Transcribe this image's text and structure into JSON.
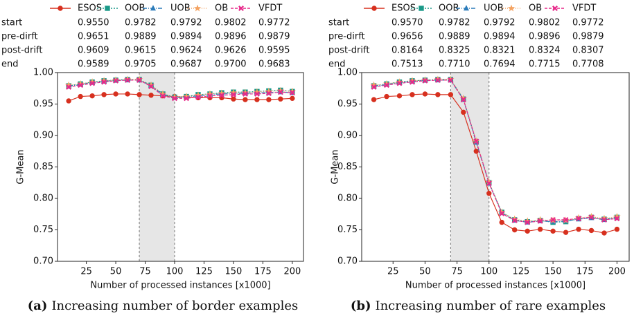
{
  "chart_data": [
    {
      "type": "line",
      "caption_label": "(a)",
      "caption": "Increasing number of border examples",
      "xlabel": "Number of processed instances [x1000]",
      "ylabel": "G-Mean",
      "xlim": [
        0.5,
        209.5
      ],
      "xticks": [
        25,
        50,
        75,
        100,
        125,
        150,
        175,
        200
      ],
      "ylim": [
        0.7,
        1.0
      ],
      "yticks": [
        {
          "value": 0.7,
          "label": "0.70"
        },
        0.75,
        {
          "value": 0.8,
          "label": "0.80"
        },
        0.85,
        {
          "value": 0.9,
          "label": "0.90"
        },
        0.95,
        {
          "value": 1.0,
          "label": "1.00"
        }
      ],
      "drift_span": [
        70,
        100
      ],
      "x": [
        10,
        20,
        30,
        40,
        50,
        60,
        70,
        80,
        90,
        100,
        110,
        120,
        130,
        140,
        150,
        160,
        170,
        180,
        190,
        200
      ],
      "series": [
        {
          "name": "ESOS",
          "color": "#d7301f",
          "values": [
            0.955,
            0.962,
            0.963,
            0.965,
            0.966,
            0.966,
            0.965,
            0.964,
            0.963,
            0.962,
            0.961,
            0.96,
            0.96,
            0.96,
            0.958,
            0.957,
            0.957,
            0.957,
            0.958,
            0.959
          ]
        },
        {
          "name": "OOB",
          "color": "#1a9988",
          "values": [
            0.979,
            0.982,
            0.985,
            0.987,
            0.988,
            0.989,
            0.989,
            0.98,
            0.966,
            0.961,
            0.962,
            0.965,
            0.966,
            0.968,
            0.969,
            0.969,
            0.97,
            0.971,
            0.972,
            0.97
          ]
        },
        {
          "name": "UOB",
          "color": "#2b7bba",
          "values": [
            0.978,
            0.981,
            0.984,
            0.986,
            0.988,
            0.988,
            0.988,
            0.979,
            0.965,
            0.96,
            0.961,
            0.963,
            0.965,
            0.966,
            0.967,
            0.967,
            0.968,
            0.968,
            0.969,
            0.968
          ]
        },
        {
          "name": "OB",
          "color": "#f4a261",
          "values": [
            0.98,
            0.982,
            0.985,
            0.987,
            0.988,
            0.989,
            0.989,
            0.98,
            0.966,
            0.961,
            0.962,
            0.964,
            0.966,
            0.967,
            0.968,
            0.968,
            0.969,
            0.97,
            0.971,
            0.97
          ]
        },
        {
          "name": "VFDT",
          "color": "#e7298a",
          "values": [
            0.977,
            0.98,
            0.983,
            0.985,
            0.987,
            0.988,
            0.988,
            0.978,
            0.963,
            0.959,
            0.959,
            0.961,
            0.963,
            0.964,
            0.965,
            0.966,
            0.966,
            0.967,
            0.969,
            0.968
          ]
        }
      ],
      "summary": [
        {
          "label": "start",
          "values": [
            "0.9550",
            "0.9782",
            "0.9792",
            "0.9802",
            "0.9772"
          ]
        },
        {
          "label": "pre-dirft",
          "values": [
            "0.9651",
            "0.9889",
            "0.9894",
            "0.9896",
            "0.9879"
          ]
        },
        {
          "label": "post-drift",
          "values": [
            "0.9609",
            "0.9615",
            "0.9624",
            "0.9626",
            "0.9595"
          ]
        },
        {
          "label": "end",
          "values": [
            "0.9589",
            "0.9705",
            "0.9687",
            "0.9700",
            "0.9683"
          ]
        }
      ]
    },
    {
      "type": "line",
      "caption_label": "(b)",
      "caption": "Increasing number of rare examples",
      "xlabel": "Number of processed instances [x1000]",
      "ylabel": "G-Mean",
      "xlim": [
        0.5,
        209.5
      ],
      "xticks": [
        25,
        50,
        75,
        100,
        125,
        150,
        175,
        200
      ],
      "ylim": [
        0.7,
        1.0
      ],
      "yticks": [
        {
          "value": 0.7,
          "label": "0.70"
        },
        0.75,
        {
          "value": 0.8,
          "label": "0.80"
        },
        0.85,
        {
          "value": 0.9,
          "label": "0.90"
        },
        0.95,
        {
          "value": 1.0,
          "label": "1.00"
        }
      ],
      "drift_span": [
        70,
        100
      ],
      "x": [
        10,
        20,
        30,
        40,
        50,
        60,
        70,
        80,
        90,
        100,
        110,
        120,
        130,
        140,
        150,
        160,
        170,
        180,
        190,
        200
      ],
      "series": [
        {
          "name": "ESOS",
          "color": "#d7301f",
          "values": [
            0.957,
            0.962,
            0.963,
            0.965,
            0.966,
            0.965,
            0.965,
            0.937,
            0.875,
            0.808,
            0.762,
            0.75,
            0.748,
            0.751,
            0.748,
            0.746,
            0.751,
            0.749,
            0.745,
            0.751
          ]
        },
        {
          "name": "OOB",
          "color": "#1a9988",
          "values": [
            0.979,
            0.982,
            0.985,
            0.987,
            0.988,
            0.989,
            0.989,
            0.958,
            0.89,
            0.825,
            0.778,
            0.766,
            0.763,
            0.765,
            0.762,
            0.763,
            0.768,
            0.77,
            0.767,
            0.77
          ]
        },
        {
          "name": "UOB",
          "color": "#2b7bba",
          "values": [
            0.978,
            0.981,
            0.984,
            0.986,
            0.988,
            0.988,
            0.988,
            0.957,
            0.889,
            0.824,
            0.777,
            0.765,
            0.762,
            0.764,
            0.763,
            0.764,
            0.767,
            0.769,
            0.766,
            0.769
          ]
        },
        {
          "name": "OB",
          "color": "#f4a261",
          "values": [
            0.98,
            0.982,
            0.985,
            0.987,
            0.988,
            0.989,
            0.989,
            0.959,
            0.891,
            0.826,
            0.778,
            0.767,
            0.764,
            0.766,
            0.765,
            0.765,
            0.769,
            0.771,
            0.768,
            0.771
          ]
        },
        {
          "name": "VFDT",
          "color": "#e7298a",
          "values": [
            0.977,
            0.98,
            0.983,
            0.985,
            0.987,
            0.988,
            0.988,
            0.957,
            0.891,
            0.824,
            0.776,
            0.765,
            0.762,
            0.764,
            0.766,
            0.766,
            0.768,
            0.77,
            0.766,
            0.768
          ]
        }
      ],
      "summary": [
        {
          "label": "start",
          "values": [
            "0.9570",
            "0.9782",
            "0.9792",
            "0.9802",
            "0.9772"
          ]
        },
        {
          "label": "pre-dirft",
          "values": [
            "0.9656",
            "0.9889",
            "0.9894",
            "0.9896",
            "0.9879"
          ]
        },
        {
          "label": "post-drift",
          "values": [
            "0.8164",
            "0.8325",
            "0.8321",
            "0.8324",
            "0.8307"
          ]
        },
        {
          "label": "end",
          "values": [
            "0.7513",
            "0.7710",
            "0.7694",
            "0.7715",
            "0.7708"
          ]
        }
      ]
    }
  ]
}
